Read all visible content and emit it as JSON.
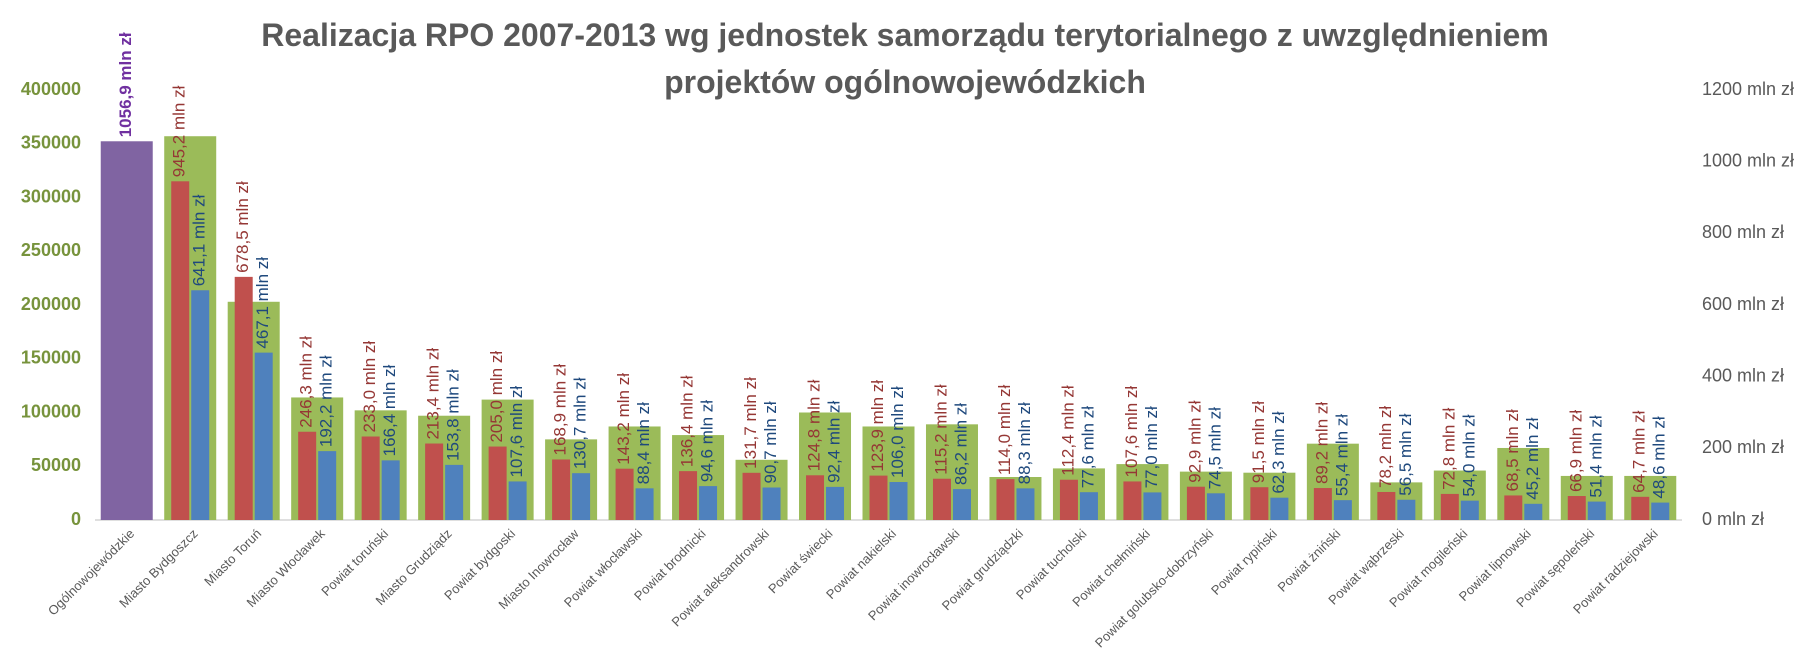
{
  "chart_data": {
    "type": "bar",
    "title": "Realizacja RPO 2007-2013 wg jednostek samorządu terytorialnego z uwzględnieniem projektów ogólnowojewódzkich",
    "categories": [
      "Ogólnowojewódzkie",
      "Miasto Bydgoszcz",
      "Miasto Toruń",
      "Miasto Włocławek",
      "Powiat toruński",
      "Miasto Grudziądz",
      "Powiat bydgoski",
      "Miasto Inowrocław",
      "Powiat włocławski",
      "Powiat brodnicki",
      "Powiat aleksandrowski",
      "Powiat świecki",
      "Powiat nakielski",
      "Powiat inowrocławski",
      "Powiat grudziądzki",
      "Powiat tucholski",
      "Powiat chełmiński",
      "Powiat golubsko-dobrzyński",
      "Powiat rypiński",
      "Powiat żniński",
      "Powiat wąbrzeski",
      "Powiat mogileński",
      "Powiat lipnowski",
      "Powiat sępoleński",
      "Powiat radziejowski"
    ],
    "series": [
      {
        "color": "#9bbb59",
        "values": [
          null,
          357000,
          203000,
          114000,
          102000,
          97000,
          112000,
          75000,
          87000,
          79000,
          56000,
          100000,
          87000,
          89000,
          40000,
          48000,
          52000,
          45000,
          44000,
          71000,
          35000,
          46000,
          67000,
          41000,
          41000
        ]
      },
      {
        "color": "#8064a2",
        "axis": "y2",
        "values": [
          1056.9,
          null,
          null,
          null,
          null,
          null,
          null,
          null,
          null,
          null,
          null,
          null,
          null,
          null,
          null,
          null,
          null,
          null,
          null,
          null,
          null,
          null,
          null,
          null,
          null
        ],
        "value_labels": [
          "1056,9 mln zł",
          null,
          null,
          null,
          null,
          null,
          null,
          null,
          null,
          null,
          null,
          null,
          null,
          null,
          null,
          null,
          null,
          null,
          null,
          null,
          null,
          null,
          null,
          null,
          null
        ]
      },
      {
        "color": "#c0504d",
        "axis": "y2",
        "values": [
          null,
          945.2,
          678.5,
          246.3,
          233.0,
          213.4,
          205.0,
          168.9,
          143.2,
          136.4,
          131.7,
          124.8,
          123.9,
          115.2,
          114.0,
          112.4,
          107.6,
          92.9,
          91.5,
          89.2,
          78.2,
          72.8,
          68.5,
          66.9,
          64.7
        ],
        "value_labels": [
          null,
          "945,2 mln zł",
          "678,5 mln zł",
          "246,3 mln zł",
          "233,0 mln zł",
          "213,4 mln zł",
          "205,0 mln zł",
          "168,9 mln zł",
          "143,2 mln zł",
          "136,4 mln zł",
          "131,7 mln zł",
          "124,8 mln zł",
          "123,9 mln zł",
          "115,2 mln zł",
          "114,0 mln zł",
          "112,4 mln zł",
          "107,6 mln zł",
          "92,9 mln zł",
          "91,5 mln zł",
          "89,2 mln zł",
          "78,2 mln zł",
          "72,8 mln zł",
          "68,5 mln zł",
          "66,9 mln zł",
          "64,7 mln zł"
        ]
      },
      {
        "color": "#4f81bd",
        "axis": "y2",
        "values": [
          null,
          641.1,
          467.1,
          192.2,
          166.4,
          153.8,
          107.6,
          130.7,
          88.4,
          94.6,
          90.7,
          92.4,
          106.0,
          86.2,
          88.3,
          77.6,
          77.0,
          74.5,
          62.3,
          55.4,
          56.5,
          54.0,
          45.2,
          51.4,
          48.6
        ],
        "value_labels": [
          null,
          "641,1 mln zł",
          "467,1 mln zł",
          "192,2 mln zł",
          "166,4 mln zł",
          "153,8 mln zł",
          "107,6 mln zł",
          "130,7 mln zł",
          "88,4 mln zł",
          "94,6 mln zł",
          "90,7 mln zł",
          "92,4 mln zł",
          "106,0 mln zł",
          "86,2 mln zł",
          "88,3 mln zł",
          "77,6 mln zł",
          "77,0 mln zł",
          "74,5 mln zł",
          "62,3 mln zł",
          "55,4 mln zł",
          "56,5 mln zł",
          "54,0 mln zł",
          "45,2 mln zł",
          "51,4 mln zł",
          "48,6 mln zł"
        ]
      }
    ],
    "ylim": [
      0,
      400000
    ],
    "yticks": [
      0,
      50000,
      100000,
      150000,
      200000,
      250000,
      300000,
      350000,
      400000
    ],
    "y2lim": [
      0,
      1200
    ],
    "y2ticks": [
      {
        "value": 0,
        "label": "0 mln zł"
      },
      {
        "value": 200,
        "label": "200 mln zł"
      },
      {
        "value": 400,
        "label": "400 mln zł"
      },
      {
        "value": 600,
        "label": "600 mln zł"
      },
      {
        "value": 800,
        "label": "800 mln zł"
      },
      {
        "value": 1000,
        "label": "1000 mln zł"
      },
      {
        "value": 1200,
        "label": "1200 mln zł"
      }
    ],
    "grid": false
  }
}
